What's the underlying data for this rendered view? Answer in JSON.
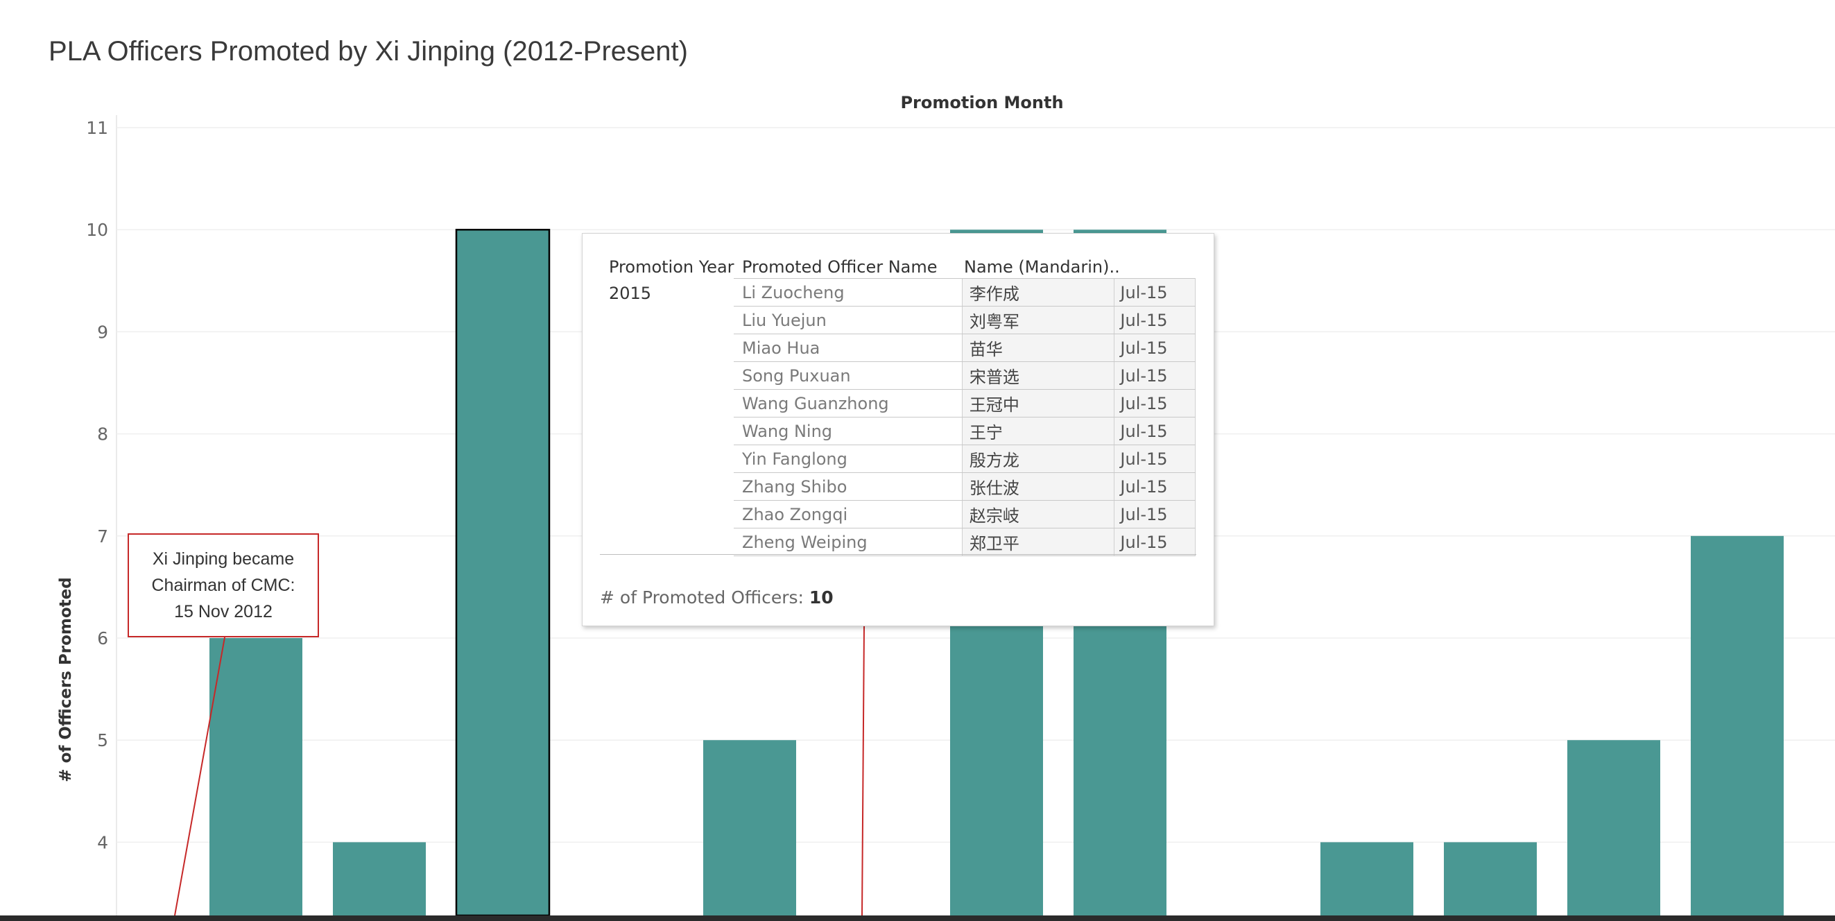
{
  "title": "PLA Officers Promoted by Xi Jinping (2012-Present)",
  "chart_data": {
    "type": "bar",
    "title": "PLA Officers Promoted by Xi Jinping (2012-Present)",
    "xlabel": "Promotion Month",
    "ylabel": "# of Officers Promoted",
    "y_ticks": [
      4,
      5,
      6,
      7,
      8,
      9,
      10,
      11
    ],
    "ylim": [
      3.15,
      11.1
    ],
    "bar_color": "#4a9893",
    "grid": true,
    "values": [
      6,
      4,
      10,
      null,
      5,
      null,
      10,
      10,
      null,
      4,
      4,
      5,
      7
    ],
    "selected_index": 2
  },
  "annotation": {
    "lines": [
      "Xi Jinping became",
      "Chairman of CMC:",
      "15 Nov 2012"
    ],
    "color": "#c62828"
  },
  "tooltip": {
    "headers": [
      "Promotion Year",
      "Promoted Officer Name",
      "Name (Mandarin).."
    ],
    "year": "2015",
    "rows": [
      {
        "name": "Li Zuocheng",
        "mandarin": "李作成",
        "date": "Jul-15"
      },
      {
        "name": "Liu Yuejun",
        "mandarin": "刘粤军",
        "date": "Jul-15"
      },
      {
        "name": "Miao Hua",
        "mandarin": "苗华",
        "date": "Jul-15"
      },
      {
        "name": "Song Puxuan",
        "mandarin": "宋普选",
        "date": "Jul-15"
      },
      {
        "name": "Wang Guanzhong",
        "mandarin": "王冠中",
        "date": "Jul-15"
      },
      {
        "name": "Wang Ning",
        "mandarin": "王宁",
        "date": "Jul-15"
      },
      {
        "name": "Yin Fanglong",
        "mandarin": "殷方龙",
        "date": "Jul-15"
      },
      {
        "name": "Zhang Shibo",
        "mandarin": "张仕波",
        "date": "Jul-15"
      },
      {
        "name": "Zhao Zongqi",
        "mandarin": "赵宗岐",
        "date": "Jul-15"
      },
      {
        "name": "Zheng Weiping",
        "mandarin": "郑卫平",
        "date": "Jul-15"
      }
    ],
    "count_label": "# of Promoted Officers:",
    "count_value": "10"
  }
}
